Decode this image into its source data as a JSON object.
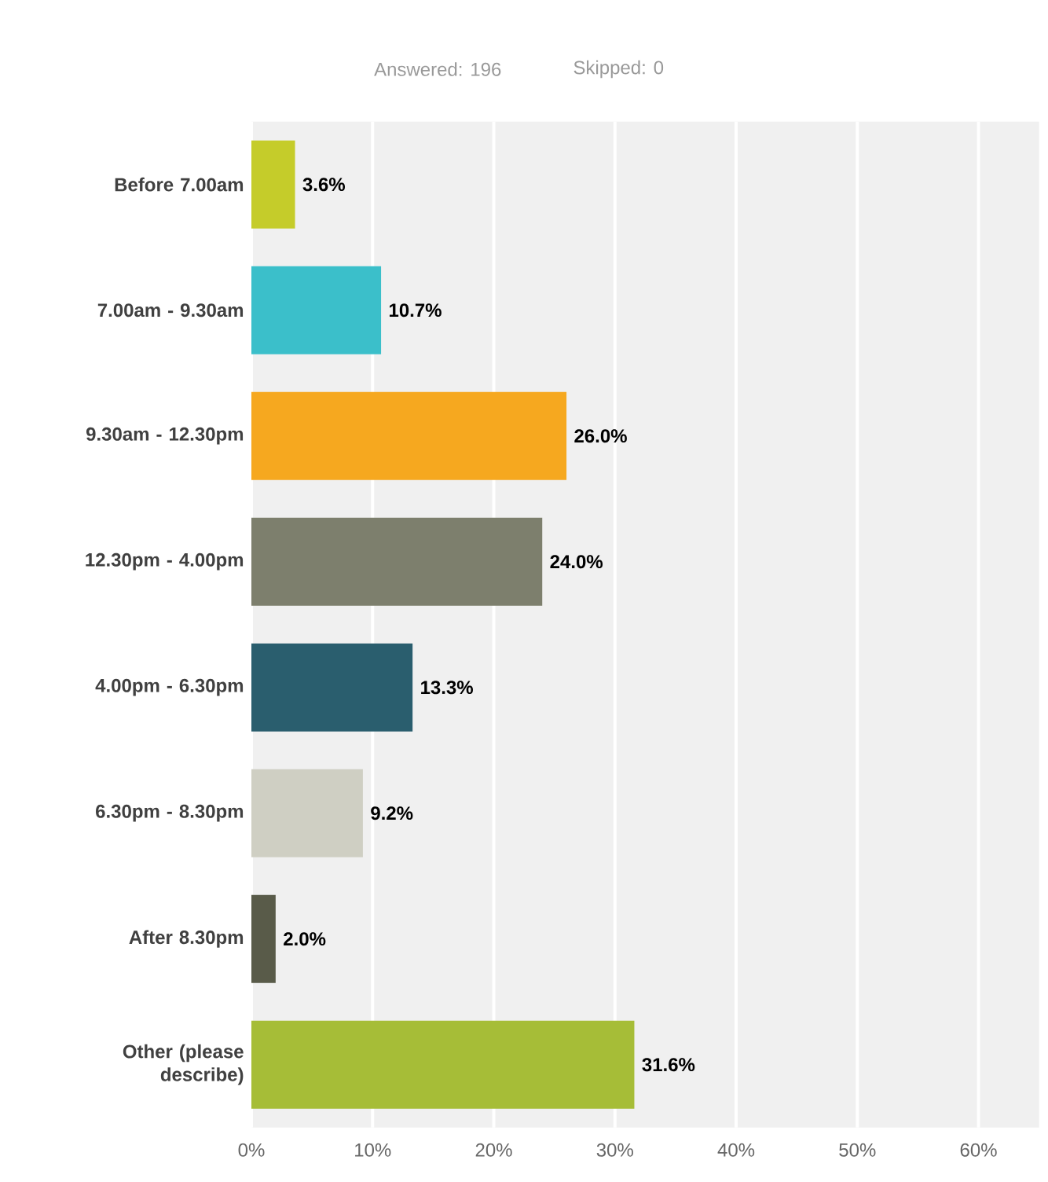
{
  "chart_data": {
    "type": "bar",
    "orientation": "horizontal",
    "annotations": [
      "Answered: 196",
      "Skipped: 0"
    ],
    "categories": [
      "Before 7.00am",
      "7.00am - 9.30am",
      "9.30am - 12.30pm",
      "12.30pm - 4.00pm",
      "4.00pm - 6.30pm",
      "6.30pm - 8.30pm",
      "After 8.30pm",
      "Other (please describe)"
    ],
    "values": [
      3.6,
      10.7,
      26.0,
      24.0,
      13.3,
      9.2,
      2.0,
      31.6
    ],
    "value_labels": [
      "3.6%",
      "10.7%",
      "26.0%",
      "24.0%",
      "13.3%",
      "9.2%",
      "2.0%",
      "31.6%"
    ],
    "colors": [
      "#c5cc2a",
      "#3bbfca",
      "#f6a81f",
      "#7d7f6d",
      "#2a5e6e",
      "#cfcfc3",
      "#595b49",
      "#a6bd37"
    ],
    "xlim": [
      0,
      65
    ],
    "xticks": [
      {
        "value": 0,
        "label": "0%"
      },
      {
        "value": 10,
        "label": "10%"
      },
      {
        "value": 20,
        "label": "20%"
      },
      {
        "value": 30,
        "label": "30%"
      },
      {
        "value": 40,
        "label": "40%"
      },
      {
        "value": 50,
        "label": "50%"
      },
      {
        "value": 60,
        "label": "60%"
      }
    ],
    "grid": "x"
  }
}
